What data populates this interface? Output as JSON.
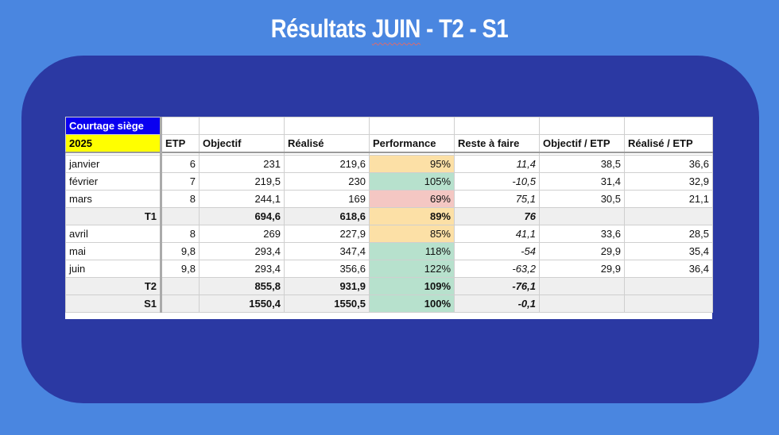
{
  "title": {
    "prefix": "Résultats ",
    "highlight": "JUIN",
    "suffix": " - T2 - S1"
  },
  "colors": {
    "background": "#4a86e0",
    "panel": "#2b39a3",
    "header_blue": "#0a00f0",
    "header_yellow": "#ffff00",
    "perf_orange": "#fce0a6",
    "perf_green": "#b7e1cd",
    "perf_red": "#f4c7c3"
  },
  "table": {
    "label": "Courtage siège",
    "year": "2025",
    "headers": [
      "ETP",
      "Objectif",
      "Réalisé",
      "Performance",
      "Reste à faire",
      "Objectif / ETP",
      "Réalisé / ETP"
    ],
    "rows": [
      {
        "label": "janvier",
        "etp": "6",
        "objectif": "231",
        "realise": "219,6",
        "performance": "95%",
        "reste": "11,4",
        "obj_etp": "38,5",
        "real_etp": "36,6",
        "perf_color": "orange"
      },
      {
        "label": "février",
        "etp": "7",
        "objectif": "219,5",
        "realise": "230",
        "performance": "105%",
        "reste": "-10,5",
        "obj_etp": "31,4",
        "real_etp": "32,9",
        "perf_color": "green"
      },
      {
        "label": "mars",
        "etp": "8",
        "objectif": "244,1",
        "realise": "169",
        "performance": "69%",
        "reste": "75,1",
        "obj_etp": "30,5",
        "real_etp": "21,1",
        "perf_color": "red"
      },
      {
        "label": "T1",
        "etp": "",
        "objectif": "694,6",
        "realise": "618,6",
        "performance": "89%",
        "reste": "76",
        "obj_etp": "",
        "real_etp": "",
        "perf_color": "orange"
      },
      {
        "label": "avril",
        "etp": "8",
        "objectif": "269",
        "realise": "227,9",
        "performance": "85%",
        "reste": "41,1",
        "obj_etp": "33,6",
        "real_etp": "28,5",
        "perf_color": "orange"
      },
      {
        "label": "mai",
        "etp": "9,8",
        "objectif": "293,4",
        "realise": "347,4",
        "performance": "118%",
        "reste": "-54",
        "obj_etp": "29,9",
        "real_etp": "35,4",
        "perf_color": "green"
      },
      {
        "label": "juin",
        "etp": "9,8",
        "objectif": "293,4",
        "realise": "356,6",
        "performance": "122%",
        "reste": "-63,2",
        "obj_etp": "29,9",
        "real_etp": "36,4",
        "perf_color": "green"
      },
      {
        "label": "T2",
        "etp": "",
        "objectif": "855,8",
        "realise": "931,9",
        "performance": "109%",
        "reste": "-76,1",
        "obj_etp": "",
        "real_etp": "",
        "perf_color": "green"
      },
      {
        "label": "S1",
        "etp": "",
        "objectif": "1550,4",
        "realise": "1550,5",
        "performance": "100%",
        "reste": "-0,1",
        "obj_etp": "",
        "real_etp": "",
        "perf_color": "green"
      }
    ]
  }
}
